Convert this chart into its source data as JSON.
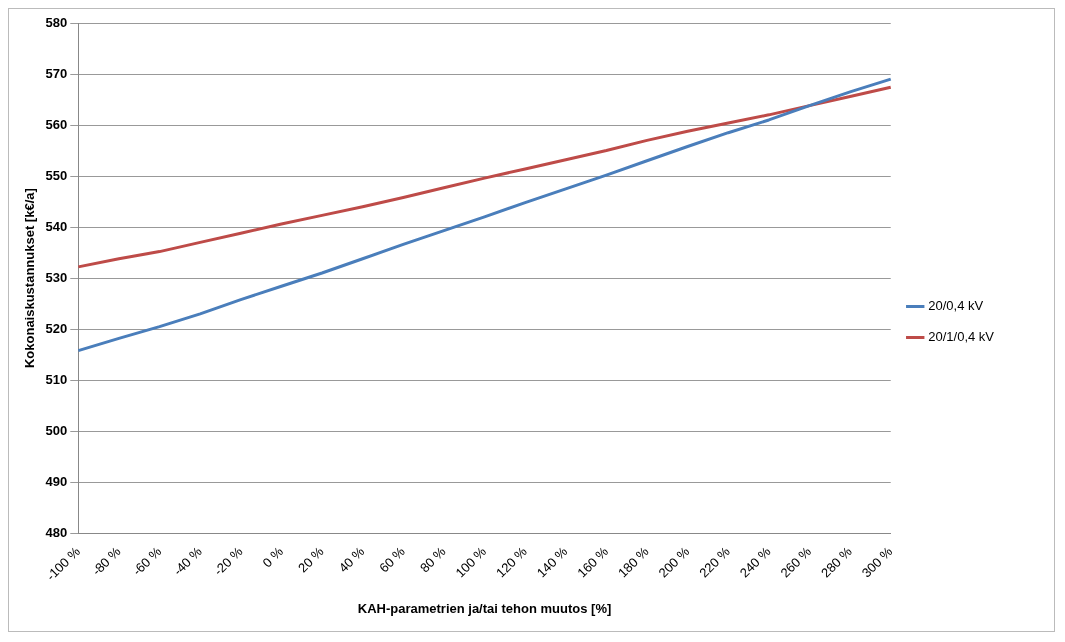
{
  "chart_data": {
    "type": "line",
    "xlabel": "KAH-parametrien ja/tai tehon muutos [%]",
    "ylabel": "Kokonaiskustannukset [k€/a]",
    "categories": [
      "-100 %",
      "-80 %",
      "-60 %",
      "-40 %",
      "-20 %",
      "0 %",
      "20 %",
      "40 %",
      "60 %",
      "80 %",
      "100 %",
      "120 %",
      "140 %",
      "160 %",
      "180 %",
      "200 %",
      "220 %",
      "240 %",
      "260 %",
      "280 %",
      "300 %"
    ],
    "series": [
      {
        "name": "20/0,4 kV",
        "color": "#4a7ebb",
        "values": [
          515.8,
          518.2,
          520.5,
          523.0,
          525.8,
          528.4,
          531.0,
          533.8,
          536.6,
          539.3,
          542.0,
          544.8,
          547.5,
          550.2,
          553.0,
          555.8,
          558.5,
          561.0,
          563.8,
          566.5,
          569.0
        ]
      },
      {
        "name": "20/1/0,4 kV",
        "color": "#be4b48",
        "values": [
          532.2,
          533.8,
          535.2,
          537.0,
          538.8,
          540.6,
          542.3,
          544.0,
          545.8,
          547.7,
          549.6,
          551.4,
          553.2,
          555.0,
          557.0,
          558.8,
          560.4,
          562.0,
          563.8,
          565.6,
          567.4
        ]
      }
    ],
    "ylim": [
      480,
      580
    ],
    "yticks": [
      480,
      490,
      500,
      510,
      520,
      530,
      540,
      550,
      560,
      570,
      580
    ],
    "grid": "y",
    "legend": "right",
    "marker": "none",
    "line_style": "solid"
  }
}
